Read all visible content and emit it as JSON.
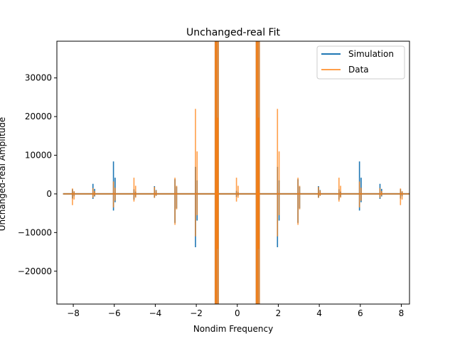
{
  "chart_data": {
    "type": "line",
    "title": "Unchanged-real Fit",
    "xlabel": "Nondim Frequency",
    "ylabel": "Unchanged-real Amplitude",
    "xlim": [
      -8.8,
      8.4
    ],
    "ylim": [
      -28500,
      39500
    ],
    "xticks": [
      -8,
      -6,
      -4,
      -2,
      0,
      2,
      4,
      6,
      8
    ],
    "yticks": [
      -20000,
      -10000,
      0,
      10000,
      20000,
      30000
    ],
    "grid": false,
    "legend": "top-right",
    "series": [
      {
        "name": "Simulation",
        "color": "#1f77b4",
        "spikes": [
          {
            "x": -8.0,
            "hi": 1200,
            "lo": -1200
          },
          {
            "x": -7.0,
            "hi": 2600,
            "lo": -1300
          },
          {
            "x": -6.0,
            "hi": 8400,
            "lo": -4300
          },
          {
            "x": -5.0,
            "hi": 1200,
            "lo": -1500
          },
          {
            "x": -4.0,
            "hi": 2000,
            "lo": -1000
          },
          {
            "x": -3.0,
            "hi": 3800,
            "lo": -7500
          },
          {
            "x": -2.0,
            "hi": 7000,
            "lo": -13800
          },
          {
            "x": -1.0,
            "hi": 39500,
            "lo": -28500
          },
          {
            "x": 0.0,
            "hi": 800,
            "lo": -800
          },
          {
            "x": 1.0,
            "hi": 39500,
            "lo": -28500
          },
          {
            "x": 2.0,
            "hi": 7000,
            "lo": -13800
          },
          {
            "x": 3.0,
            "hi": 3800,
            "lo": -7500
          },
          {
            "x": 4.0,
            "hi": 2000,
            "lo": -1000
          },
          {
            "x": 5.0,
            "hi": 1200,
            "lo": -1500
          },
          {
            "x": 6.0,
            "hi": 8400,
            "lo": -4300
          },
          {
            "x": 7.0,
            "hi": 2600,
            "lo": -1300
          },
          {
            "x": 8.0,
            "hi": 1200,
            "lo": -1200
          }
        ]
      },
      {
        "name": "Data",
        "color": "#ff7f0e",
        "spikes": [
          {
            "x": -8.0,
            "hi": 1400,
            "lo": -2900
          },
          {
            "x": -7.0,
            "hi": 1500,
            "lo": -1000
          },
          {
            "x": -6.0,
            "hi": 3200,
            "lo": -3500
          },
          {
            "x": -5.0,
            "hi": 4200,
            "lo": -2000
          },
          {
            "x": -4.0,
            "hi": 1800,
            "lo": -1000
          },
          {
            "x": -3.0,
            "hi": 4200,
            "lo": -8000
          },
          {
            "x": -2.0,
            "hi": 22000,
            "lo": -11000
          },
          {
            "x": -1.0,
            "hi": 39500,
            "lo": -28500
          },
          {
            "x": 0.0,
            "hi": 4200,
            "lo": -2000
          },
          {
            "x": 1.0,
            "hi": 39500,
            "lo": -28500
          },
          {
            "x": 2.0,
            "hi": 22000,
            "lo": -11000
          },
          {
            "x": 3.0,
            "hi": 4200,
            "lo": -8000
          },
          {
            "x": 4.0,
            "hi": 1800,
            "lo": -1000
          },
          {
            "x": 5.0,
            "hi": 4200,
            "lo": -2000
          },
          {
            "x": 6.0,
            "hi": 3200,
            "lo": -3500
          },
          {
            "x": 7.0,
            "hi": 1500,
            "lo": -1000
          },
          {
            "x": 8.0,
            "hi": 1400,
            "lo": -2900
          }
        ]
      }
    ]
  }
}
